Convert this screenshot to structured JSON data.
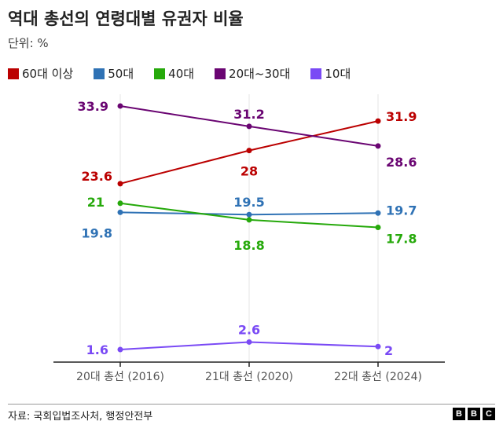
{
  "chart_data": {
    "type": "line",
    "title": "역대 총선의 연령대별 유권자 비율",
    "subtitle": "단위: %",
    "categories": [
      "20대 총선 (2016)",
      "21대 총선 (2020)",
      "22대 총선 (2024)"
    ],
    "ylim": [
      0,
      35
    ],
    "grid": "vertical",
    "legend_placement": "top",
    "series": [
      {
        "name": "60대 이상",
        "color": "#bb0000",
        "values": [
          23.6,
          28,
          31.9
        ]
      },
      {
        "name": "50대",
        "color": "#2f72b5",
        "values": [
          19.8,
          19.5,
          19.7
        ]
      },
      {
        "name": "40대",
        "color": "#26a90b",
        "values": [
          21,
          18.8,
          17.8
        ]
      },
      {
        "name": "20대~30대",
        "color": "#6a0572",
        "values": [
          33.9,
          31.2,
          28.6
        ]
      },
      {
        "name": "10대",
        "color": "#7a4af5",
        "values": [
          1.6,
          2.6,
          2
        ]
      }
    ]
  },
  "source": "자료: 국회입법조사처, 행정안전부",
  "logo": "BBC"
}
